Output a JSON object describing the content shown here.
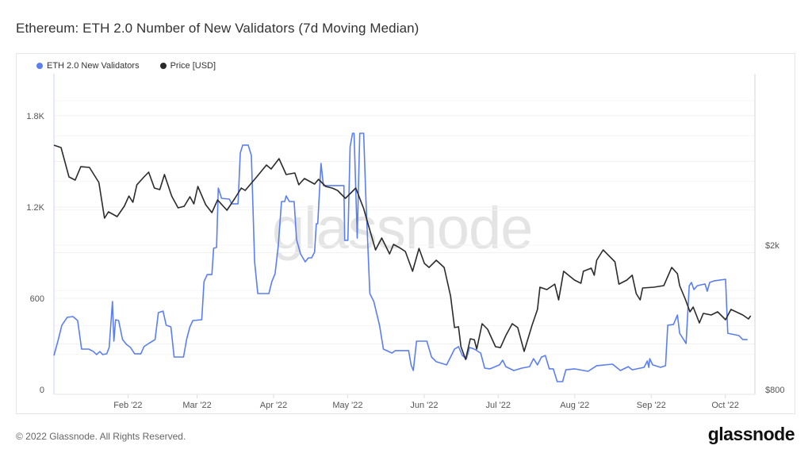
{
  "title": "Ethereum: ETH 2.0 Number of New Validators (7d Moving Median)",
  "footer": {
    "copyright": "© 2022 Glassnode. All Rights Reserved.",
    "logo": "glassnode",
    "watermark": "glassnode"
  },
  "colors": {
    "validators": "#5b7ff0",
    "price": "#2b2b2b",
    "grid": "#f0f0f0"
  },
  "chart_data": {
    "type": "line",
    "title": "Ethereum: ETH 2.0 Number of New Validators (7d Moving Median)",
    "x_unit": "days since 2022-01-02",
    "xlim": [
      0,
      284
    ],
    "x_ticks": [
      {
        "day": 30,
        "label": "Feb '22"
      },
      {
        "day": 58,
        "label": "Mar '22"
      },
      {
        "day": 89,
        "label": "Apr '22"
      },
      {
        "day": 119,
        "label": "May '22"
      },
      {
        "day": 150,
        "label": "Jun '22"
      },
      {
        "day": 180,
        "label": "Jul '22"
      },
      {
        "day": 211,
        "label": "Aug '22"
      },
      {
        "day": 242,
        "label": "Sep '22"
      },
      {
        "day": 272,
        "label": "Oct '22"
      }
    ],
    "left_axis": {
      "scale": "linear",
      "ylim": [
        0,
        2076
      ],
      "ticks": [
        {
          "v": 0,
          "label": "0"
        },
        {
          "v": 600,
          "label": "600"
        },
        {
          "v": 1200,
          "label": "1.2K"
        },
        {
          "v": 1800,
          "label": "1.8K"
        }
      ]
    },
    "right_axis": {
      "scale": "log",
      "ylim": [
        800,
        5930
      ],
      "ticks": [
        {
          "v": 800,
          "label": "$800"
        },
        {
          "v": 2000,
          "label": "$2k"
        }
      ]
    },
    "grid": true,
    "legend_position": "top-left",
    "series": [
      {
        "name": "ETH 2.0 New Validators",
        "axis": "left",
        "color": "#5b7ff0",
        "points": [
          [
            0,
            224
          ],
          [
            1.6,
            318
          ],
          [
            3.2,
            423
          ],
          [
            5.4,
            475
          ],
          [
            7.7,
            480
          ],
          [
            9.6,
            454
          ],
          [
            11.2,
            266
          ],
          [
            14.1,
            266
          ],
          [
            16,
            250
          ],
          [
            17.3,
            230
          ],
          [
            18.6,
            250
          ],
          [
            19.8,
            230
          ],
          [
            21.4,
            235
          ],
          [
            22.4,
            277
          ],
          [
            23.7,
            579
          ],
          [
            24.3,
            318
          ],
          [
            25,
            459
          ],
          [
            26.2,
            454
          ],
          [
            27.8,
            329
          ],
          [
            29.4,
            297
          ],
          [
            31,
            277
          ],
          [
            32.7,
            235
          ],
          [
            35.2,
            235
          ],
          [
            36.5,
            282
          ],
          [
            38.4,
            303
          ],
          [
            41,
            329
          ],
          [
            42.3,
            506
          ],
          [
            44.2,
            516
          ],
          [
            45.5,
            423
          ],
          [
            47.4,
            412
          ],
          [
            48.7,
            214
          ],
          [
            52.5,
            214
          ],
          [
            53.8,
            334
          ],
          [
            55.1,
            412
          ],
          [
            56.3,
            454
          ],
          [
            59.9,
            459
          ],
          [
            60.8,
            710
          ],
          [
            62.1,
            756
          ],
          [
            64,
            756
          ],
          [
            64.7,
            929
          ],
          [
            65.9,
            934
          ],
          [
            66.6,
            1325
          ],
          [
            67.9,
            1257
          ],
          [
            71.1,
            1252
          ],
          [
            72,
            1221
          ],
          [
            74.6,
            1221
          ],
          [
            75.5,
            1555
          ],
          [
            76.5,
            1607
          ],
          [
            78.7,
            1607
          ],
          [
            80,
            1539
          ],
          [
            81.3,
            840
          ],
          [
            82.6,
            631
          ],
          [
            87.1,
            631
          ],
          [
            88.3,
            710
          ],
          [
            89.6,
            762
          ],
          [
            90.9,
            944
          ],
          [
            92.2,
            1236
          ],
          [
            93.5,
            1236
          ],
          [
            94.1,
            1273
          ],
          [
            95.4,
            1236
          ],
          [
            97.3,
            1236
          ],
          [
            98.3,
            986
          ],
          [
            99.9,
            892
          ],
          [
            101.8,
            840
          ],
          [
            103.1,
            866
          ],
          [
            104.4,
            866
          ],
          [
            105.6,
            903
          ],
          [
            106.3,
            1090
          ],
          [
            106.9,
            1090
          ],
          [
            108.2,
            1487
          ],
          [
            109.2,
            1341
          ],
          [
            117.5,
            1341
          ],
          [
            117.8,
            981
          ],
          [
            119.1,
            981
          ],
          [
            120,
            1596
          ],
          [
            121,
            1685
          ],
          [
            121.6,
            1685
          ],
          [
            122.9,
            996
          ],
          [
            123.9,
            1685
          ],
          [
            125.5,
            1685
          ],
          [
            126.4,
            1257
          ],
          [
            128,
            631
          ],
          [
            129.6,
            579
          ],
          [
            131.9,
            423
          ],
          [
            133.5,
            266
          ],
          [
            137,
            240
          ],
          [
            138.3,
            256
          ],
          [
            143.7,
            256
          ],
          [
            144.7,
            162
          ],
          [
            145.6,
            125
          ],
          [
            146.9,
            318
          ],
          [
            151.1,
            318
          ],
          [
            153,
            214
          ],
          [
            154.9,
            183
          ],
          [
            159.1,
            162
          ],
          [
            160.7,
            214
          ],
          [
            162.3,
            266
          ],
          [
            163.9,
            282
          ],
          [
            165.5,
            224
          ],
          [
            167.1,
            203
          ],
          [
            168.4,
            277
          ],
          [
            170.3,
            266
          ],
          [
            172.9,
            240
          ],
          [
            174.5,
            141
          ],
          [
            176.7,
            136
          ],
          [
            180.5,
            162
          ],
          [
            181.8,
            193
          ],
          [
            183.1,
            151
          ],
          [
            186.3,
            125
          ],
          [
            189.5,
            141
          ],
          [
            192.7,
            151
          ],
          [
            194.3,
            203
          ],
          [
            195.9,
            162
          ],
          [
            197.5,
            214
          ],
          [
            199.1,
            224
          ],
          [
            200.7,
            136
          ],
          [
            202.3,
            136
          ],
          [
            203.9,
            52
          ],
          [
            206.1,
            52
          ],
          [
            207.4,
            130
          ],
          [
            210.9,
            136
          ],
          [
            216.4,
            120
          ],
          [
            219.9,
            157
          ],
          [
            226.3,
            167
          ],
          [
            229.5,
            125
          ],
          [
            232.7,
            151
          ],
          [
            234.3,
            130
          ],
          [
            239.1,
            146
          ],
          [
            240.4,
            188
          ],
          [
            241,
            146
          ],
          [
            241.4,
            203
          ],
          [
            242.6,
            162
          ],
          [
            245.8,
            146
          ],
          [
            247.8,
            157
          ],
          [
            248.7,
            423
          ],
          [
            251,
            428
          ],
          [
            252.6,
            490
          ],
          [
            253.5,
            370
          ],
          [
            256.1,
            303
          ],
          [
            257.4,
            683
          ],
          [
            258.3,
            704
          ],
          [
            259.3,
            657
          ],
          [
            260.6,
            683
          ],
          [
            263.8,
            694
          ],
          [
            264.7,
            647
          ],
          [
            265.7,
            704
          ],
          [
            267.6,
            715
          ],
          [
            272.1,
            725
          ],
          [
            273,
            370
          ],
          [
            277.5,
            355
          ],
          [
            279.1,
            329
          ],
          [
            281,
            329
          ]
        ]
      },
      {
        "name": "Price [USD]",
        "axis": "right",
        "color": "#2b2b2b",
        "points": [
          [
            0,
            3770
          ],
          [
            2.9,
            3714
          ],
          [
            6.1,
            3083
          ],
          [
            8.6,
            3021
          ],
          [
            10.9,
            3290
          ],
          [
            14.4,
            3274
          ],
          [
            18.2,
            2976
          ],
          [
            20.5,
            2373
          ],
          [
            22.1,
            2470
          ],
          [
            25.6,
            2397
          ],
          [
            28.5,
            2559
          ],
          [
            30.4,
            2731
          ],
          [
            32,
            2624
          ],
          [
            33.6,
            2932
          ],
          [
            36.5,
            3083
          ],
          [
            38.4,
            3177
          ],
          [
            40.7,
            2872
          ],
          [
            42.9,
            2844
          ],
          [
            44.8,
            3129
          ],
          [
            47.7,
            2731
          ],
          [
            50.3,
            2533
          ],
          [
            52.8,
            2559
          ],
          [
            55.1,
            2718
          ],
          [
            56.7,
            2598
          ],
          [
            58.3,
            2902
          ],
          [
            61.5,
            2585
          ],
          [
            64,
            2458
          ],
          [
            66.3,
            2664
          ],
          [
            70.1,
            2495
          ],
          [
            73.3,
            2691
          ],
          [
            75.9,
            2872
          ],
          [
            77.5,
            2830
          ],
          [
            81.6,
            3052
          ],
          [
            86.1,
            3324
          ],
          [
            88,
            3241
          ],
          [
            91.2,
            3461
          ],
          [
            94.1,
            3129
          ],
          [
            97.6,
            3161
          ],
          [
            99.2,
            2932
          ],
          [
            101.5,
            3052
          ],
          [
            105.6,
            2946
          ],
          [
            107.2,
            3036
          ],
          [
            110.1,
            2902
          ],
          [
            112.7,
            2872
          ],
          [
            114.9,
            2830
          ],
          [
            118.1,
            2691
          ],
          [
            122.3,
            2872
          ],
          [
            125.5,
            2521
          ],
          [
            127.7,
            2234
          ],
          [
            130.3,
            1940
          ],
          [
            132.8,
            2092
          ],
          [
            136,
            1892
          ],
          [
            137.6,
            2010
          ],
          [
            140.5,
            1959
          ],
          [
            142.4,
            1921
          ],
          [
            145.3,
            1694
          ],
          [
            147.9,
            1959
          ],
          [
            150.1,
            1781
          ],
          [
            152,
            1736
          ],
          [
            154.9,
            1817
          ],
          [
            158.1,
            1736
          ],
          [
            160.7,
            1449
          ],
          [
            162.3,
            1185
          ],
          [
            163.9,
            1191
          ],
          [
            164.9,
            1050
          ],
          [
            166.8,
            968
          ],
          [
            168.7,
            1104
          ],
          [
            170.3,
            1098
          ],
          [
            171.3,
            1034
          ],
          [
            173.5,
            1215
          ],
          [
            175.7,
            1173
          ],
          [
            178.9,
            1050
          ],
          [
            180.9,
            1044
          ],
          [
            183.1,
            1127
          ],
          [
            185.7,
            1215
          ],
          [
            187.9,
            1185
          ],
          [
            190.5,
            1019
          ],
          [
            193.7,
            1202
          ],
          [
            195.9,
            1330
          ],
          [
            196.9,
            1531
          ],
          [
            199.7,
            1508
          ],
          [
            202.9,
            1562
          ],
          [
            204.5,
            1413
          ],
          [
            206.5,
            1694
          ],
          [
            210.9,
            1602
          ],
          [
            213.5,
            1570
          ],
          [
            214.5,
            1694
          ],
          [
            217.7,
            1728
          ],
          [
            218.9,
            1652
          ],
          [
            219.9,
            1817
          ],
          [
            222.5,
            1940
          ],
          [
            227.3,
            1799
          ],
          [
            228.9,
            1562
          ],
          [
            232.1,
            1602
          ],
          [
            234.3,
            1652
          ],
          [
            235.9,
            1471
          ],
          [
            237.5,
            1413
          ],
          [
            238.5,
            1524
          ],
          [
            243,
            1531
          ],
          [
            247.1,
            1547
          ],
          [
            250.3,
            1736
          ],
          [
            252.6,
            1668
          ],
          [
            253.5,
            1547
          ],
          [
            255.8,
            1420
          ],
          [
            257.7,
            1310
          ],
          [
            259,
            1350
          ],
          [
            261.5,
            1221
          ],
          [
            263.1,
            1297
          ],
          [
            266.3,
            1284
          ],
          [
            268.9,
            1310
          ],
          [
            272.1,
            1246
          ],
          [
            274.3,
            1330
          ],
          [
            279.1,
            1284
          ],
          [
            281.4,
            1252
          ],
          [
            282.3,
            1278
          ]
        ]
      }
    ]
  }
}
